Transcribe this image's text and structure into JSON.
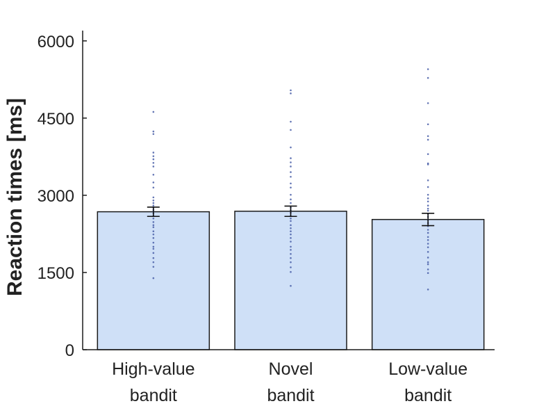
{
  "chart_data": {
    "type": "bar",
    "title": "",
    "xlabel": "",
    "ylabel": "Reaction times [ms]",
    "ylim": [
      0,
      6200
    ],
    "yticks": [
      0,
      1500,
      3000,
      4500,
      6000
    ],
    "grid": false,
    "categories": [
      [
        "High-value",
        "bandit"
      ],
      [
        "Novel",
        "bandit"
      ],
      [
        "Low-value",
        "bandit"
      ]
    ],
    "values": [
      2680,
      2690,
      2530
    ],
    "error": [
      90,
      100,
      120
    ],
    "colors": {
      "bar_fill": "#cfe0f7",
      "bar_stroke": "#1a1a1a",
      "points": "#4a5fa8",
      "axis": "#1a1a1a"
    },
    "points": [
      [
        4620,
        4240,
        4190,
        3830,
        3760,
        3700,
        3630,
        3560,
        3400,
        3250,
        3150,
        2960,
        2900,
        2850,
        2800,
        2760,
        2720,
        2690,
        2650,
        2600,
        2550,
        2480,
        2420,
        2380,
        2300,
        2240,
        2170,
        2080,
        2000,
        1960,
        1880,
        1780,
        1700,
        1610,
        1390
      ],
      [
        5040,
        4980,
        4430,
        4270,
        3930,
        3720,
        3640,
        3560,
        3450,
        3360,
        3230,
        3150,
        3010,
        2920,
        2850,
        2760,
        2710,
        2660,
        2600,
        2550,
        2500,
        2420,
        2360,
        2300,
        2240,
        2170,
        2100,
        2000,
        1940,
        1860,
        1780,
        1700,
        1600,
        1510,
        1240
      ],
      [
        5450,
        5280,
        4790,
        4380,
        4150,
        4080,
        3800,
        3620,
        3600,
        3290,
        3160,
        3010,
        2940,
        2880,
        2800,
        2740,
        2700,
        2640,
        2580,
        2520,
        2460,
        2400,
        2330,
        2270,
        2190,
        2130,
        2060,
        1990,
        1900,
        1790,
        1700,
        1660,
        1560,
        1490,
        1170
      ]
    ]
  }
}
